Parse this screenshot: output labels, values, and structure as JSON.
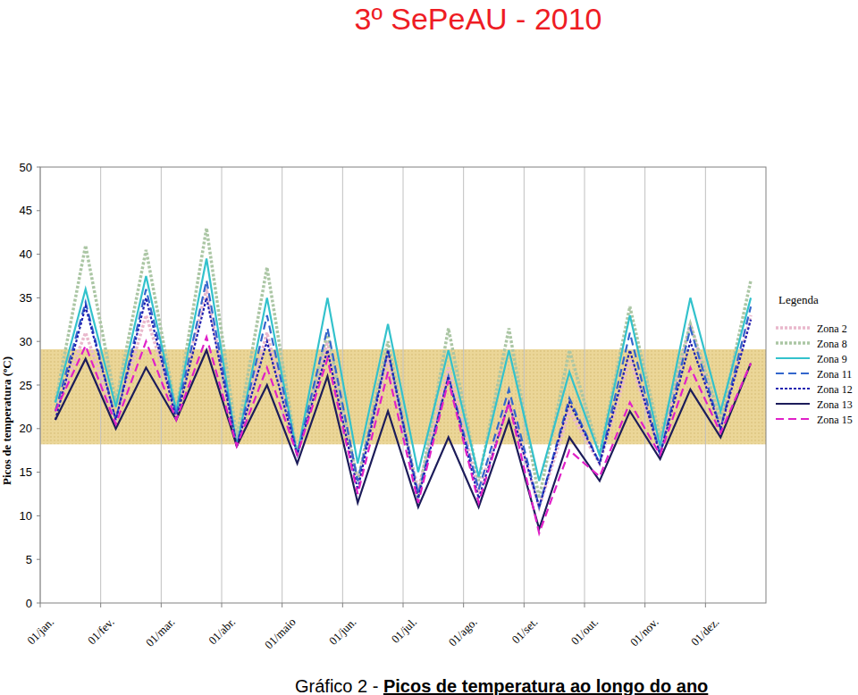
{
  "chart_data": {
    "type": "line",
    "title": "3º SePeAU - 2010",
    "caption": [
      "Gráfico 2 - ",
      "Picos de temperatura ao longo do ano"
    ],
    "y_label": "Picos de temperatura (ºC)",
    "legend_title": "Legenda",
    "legend": "right",
    "grid": "x",
    "xlim": [
      0,
      12
    ],
    "xticks": [
      {
        "value": 0,
        "label": "01/jan."
      },
      {
        "value": 1,
        "label": "01/fev."
      },
      {
        "value": 2,
        "label": "01/mar."
      },
      {
        "value": 3,
        "label": "01/abr."
      },
      {
        "value": 4,
        "label": "01/maio"
      },
      {
        "value": 5,
        "label": "01/jun."
      },
      {
        "value": 6,
        "label": "01/jul."
      },
      {
        "value": 7,
        "label": "01/ago."
      },
      {
        "value": 8,
        "label": "01/set."
      },
      {
        "value": 9,
        "label": "01/out."
      },
      {
        "value": 10,
        "label": "01/nov."
      },
      {
        "value": 11,
        "label": "01/dez."
      }
    ],
    "ylim": [
      0,
      50
    ],
    "yticks": [
      0,
      5,
      10,
      15,
      20,
      25,
      30,
      35,
      40,
      45,
      50
    ],
    "comfort_band": [
      18.2,
      29.1
    ],
    "x": [
      0.25,
      0.75,
      1.25,
      1.75,
      2.25,
      2.75,
      3.25,
      3.75,
      4.25,
      4.75,
      5.25,
      5.75,
      6.25,
      6.75,
      7.25,
      7.75,
      8.25,
      8.75,
      9.25,
      9.75,
      10.25,
      10.75,
      11.25,
      11.75
    ],
    "series": [
      {
        "name": "Zona 2",
        "color": "#e9b8cc",
        "line_style": "dotted",
        "values": [
          22,
          31,
          21,
          33,
          22,
          36,
          18,
          31,
          17,
          30,
          14,
          28,
          13,
          27,
          13,
          23,
          11,
          22,
          16,
          28,
          17.5,
          32,
          20,
          33
        ]
      },
      {
        "name": "Zona 8",
        "color": "#abc6a4",
        "line_style": "dotted",
        "values": [
          23,
          41,
          23,
          40.5,
          22,
          43,
          19,
          38.5,
          17,
          31,
          14,
          30,
          12,
          31.5,
          14,
          31.5,
          12,
          29,
          17,
          34,
          19,
          32,
          21,
          37
        ]
      },
      {
        "name": "Zona 9",
        "color": "#33c2cc",
        "line_style": "solid",
        "values": [
          23,
          36,
          22.5,
          37.5,
          22,
          39.5,
          18,
          35,
          17,
          35,
          16,
          32,
          15,
          29,
          14.5,
          29,
          14,
          26.5,
          17,
          33,
          18,
          35,
          22,
          35
        ]
      },
      {
        "name": "Zona 11",
        "color": "#3366cc",
        "line_style": "dashed",
        "values": [
          22,
          34.5,
          21,
          36,
          21.5,
          37,
          18,
          33,
          17,
          31.5,
          14,
          29,
          12.5,
          26,
          13,
          24.5,
          11,
          23.5,
          16,
          31,
          17,
          31.5,
          20,
          34
        ]
      },
      {
        "name": "Zona 12",
        "color": "#2020b0",
        "line_style": "dotted",
        "values": [
          21,
          34,
          21,
          35,
          21,
          35,
          18,
          30,
          17,
          29,
          13,
          29,
          12,
          26,
          12,
          23,
          11,
          23,
          16,
          29,
          17,
          30,
          20,
          32.5
        ]
      },
      {
        "name": "Zona 13",
        "color": "#1c1c5a",
        "line_style": "solid",
        "values": [
          21,
          28,
          20,
          27,
          21,
          29,
          18,
          25,
          16,
          26,
          11.5,
          22,
          11,
          19,
          11,
          21,
          8.5,
          19,
          14,
          22,
          16.5,
          24.5,
          19,
          27.5
        ]
      },
      {
        "name": "Zona 15",
        "color": "#e020c8",
        "line_style": "dashed",
        "values": [
          22,
          29.5,
          20.5,
          30,
          21,
          30.5,
          18,
          27,
          17,
          28,
          12.5,
          26.5,
          11.5,
          25.5,
          11.5,
          23,
          8,
          17.5,
          14.5,
          23,
          17,
          27,
          19.5,
          27.5
        ]
      }
    ]
  }
}
